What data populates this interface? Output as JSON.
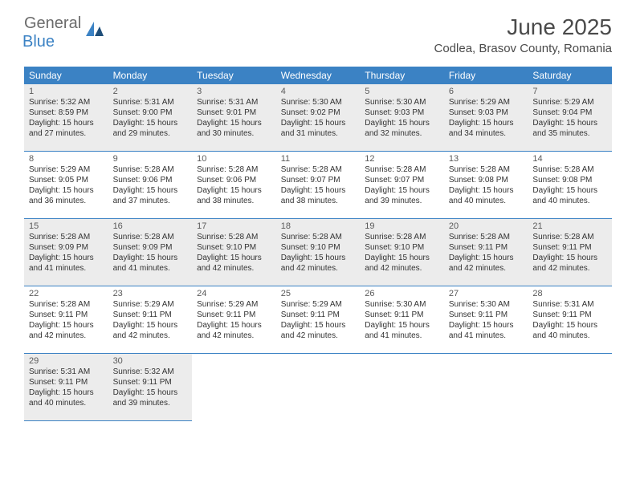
{
  "logo": {
    "general": "General",
    "blue": "Blue"
  },
  "title": "June 2025",
  "location": "Codlea, Brasov County, Romania",
  "weekdays": [
    "Sunday",
    "Monday",
    "Tuesday",
    "Wednesday",
    "Thursday",
    "Friday",
    "Saturday"
  ],
  "colors": {
    "header_bg": "#3b82c4",
    "header_text": "#ffffff",
    "shaded_bg": "#ececec",
    "border": "#3b82c4",
    "text": "#333333",
    "logo_gray": "#6b6b6b",
    "logo_blue": "#3b82c4"
  },
  "days": [
    {
      "n": 1,
      "sr": "5:32 AM",
      "ss": "8:59 PM",
      "dl": "15 hours and 27 minutes."
    },
    {
      "n": 2,
      "sr": "5:31 AM",
      "ss": "9:00 PM",
      "dl": "15 hours and 29 minutes."
    },
    {
      "n": 3,
      "sr": "5:31 AM",
      "ss": "9:01 PM",
      "dl": "15 hours and 30 minutes."
    },
    {
      "n": 4,
      "sr": "5:30 AM",
      "ss": "9:02 PM",
      "dl": "15 hours and 31 minutes."
    },
    {
      "n": 5,
      "sr": "5:30 AM",
      "ss": "9:03 PM",
      "dl": "15 hours and 32 minutes."
    },
    {
      "n": 6,
      "sr": "5:29 AM",
      "ss": "9:03 PM",
      "dl": "15 hours and 34 minutes."
    },
    {
      "n": 7,
      "sr": "5:29 AM",
      "ss": "9:04 PM",
      "dl": "15 hours and 35 minutes."
    },
    {
      "n": 8,
      "sr": "5:29 AM",
      "ss": "9:05 PM",
      "dl": "15 hours and 36 minutes."
    },
    {
      "n": 9,
      "sr": "5:28 AM",
      "ss": "9:06 PM",
      "dl": "15 hours and 37 minutes."
    },
    {
      "n": 10,
      "sr": "5:28 AM",
      "ss": "9:06 PM",
      "dl": "15 hours and 38 minutes."
    },
    {
      "n": 11,
      "sr": "5:28 AM",
      "ss": "9:07 PM",
      "dl": "15 hours and 38 minutes."
    },
    {
      "n": 12,
      "sr": "5:28 AM",
      "ss": "9:07 PM",
      "dl": "15 hours and 39 minutes."
    },
    {
      "n": 13,
      "sr": "5:28 AM",
      "ss": "9:08 PM",
      "dl": "15 hours and 40 minutes."
    },
    {
      "n": 14,
      "sr": "5:28 AM",
      "ss": "9:08 PM",
      "dl": "15 hours and 40 minutes."
    },
    {
      "n": 15,
      "sr": "5:28 AM",
      "ss": "9:09 PM",
      "dl": "15 hours and 41 minutes."
    },
    {
      "n": 16,
      "sr": "5:28 AM",
      "ss": "9:09 PM",
      "dl": "15 hours and 41 minutes."
    },
    {
      "n": 17,
      "sr": "5:28 AM",
      "ss": "9:10 PM",
      "dl": "15 hours and 42 minutes."
    },
    {
      "n": 18,
      "sr": "5:28 AM",
      "ss": "9:10 PM",
      "dl": "15 hours and 42 minutes."
    },
    {
      "n": 19,
      "sr": "5:28 AM",
      "ss": "9:10 PM",
      "dl": "15 hours and 42 minutes."
    },
    {
      "n": 20,
      "sr": "5:28 AM",
      "ss": "9:11 PM",
      "dl": "15 hours and 42 minutes."
    },
    {
      "n": 21,
      "sr": "5:28 AM",
      "ss": "9:11 PM",
      "dl": "15 hours and 42 minutes."
    },
    {
      "n": 22,
      "sr": "5:28 AM",
      "ss": "9:11 PM",
      "dl": "15 hours and 42 minutes."
    },
    {
      "n": 23,
      "sr": "5:29 AM",
      "ss": "9:11 PM",
      "dl": "15 hours and 42 minutes."
    },
    {
      "n": 24,
      "sr": "5:29 AM",
      "ss": "9:11 PM",
      "dl": "15 hours and 42 minutes."
    },
    {
      "n": 25,
      "sr": "5:29 AM",
      "ss": "9:11 PM",
      "dl": "15 hours and 42 minutes."
    },
    {
      "n": 26,
      "sr": "5:30 AM",
      "ss": "9:11 PM",
      "dl": "15 hours and 41 minutes."
    },
    {
      "n": 27,
      "sr": "5:30 AM",
      "ss": "9:11 PM",
      "dl": "15 hours and 41 minutes."
    },
    {
      "n": 28,
      "sr": "5:31 AM",
      "ss": "9:11 PM",
      "dl": "15 hours and 40 minutes."
    },
    {
      "n": 29,
      "sr": "5:31 AM",
      "ss": "9:11 PM",
      "dl": "15 hours and 40 minutes."
    },
    {
      "n": 30,
      "sr": "5:32 AM",
      "ss": "9:11 PM",
      "dl": "15 hours and 39 minutes."
    }
  ],
  "shaded_rows": [
    0,
    2,
    4
  ],
  "trailing_empty": 5
}
